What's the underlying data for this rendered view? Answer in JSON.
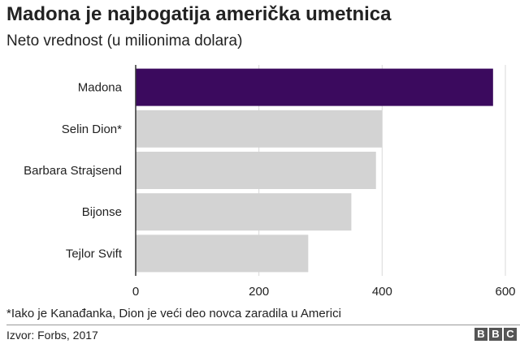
{
  "title": "Madona je najbogatija američka umetnica",
  "subtitle": "Neto vrednost (u milionima dolara)",
  "footnote": "*Iako je Kanađanka, Dion je veći deo novca zaradila u Americi",
  "source": "Izvor: Forbs, 2017",
  "logo": [
    "B",
    "B",
    "C"
  ],
  "colors": {
    "highlight": "#3b0a5e",
    "bar": "#d3d3d3",
    "grid": "#d9d9d9",
    "axis": "#333333"
  },
  "chart_data": {
    "type": "bar",
    "orientation": "horizontal",
    "categories": [
      "Madona",
      "Selin Dion*",
      "Barbara Strajsend",
      "Bijonse",
      "Tejlor Svift"
    ],
    "values": [
      580,
      400,
      390,
      350,
      280
    ],
    "highlighted": "Madona",
    "xlim": [
      0,
      600
    ],
    "xticks": [
      0,
      200,
      400,
      600
    ],
    "grid": true
  }
}
